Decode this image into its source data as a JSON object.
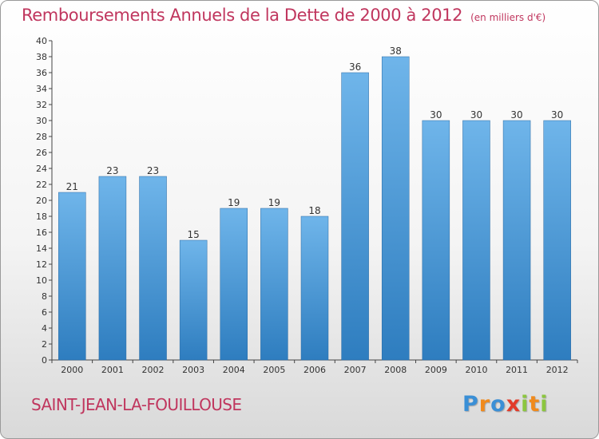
{
  "title": "Remboursements Annuels de la Dette de 2000 à 2012",
  "unit": "(en milliers d'€)",
  "commune": "SAINT-JEAN-LA-FOUILLOUSE",
  "logo": {
    "letters": [
      {
        "char": "P",
        "color": "#3a8fd6"
      },
      {
        "char": "r",
        "color": "#f08a1c"
      },
      {
        "char": "o",
        "color": "#3a8fd6"
      },
      {
        "char": "x",
        "color": "#e23b2a"
      },
      {
        "char": "i",
        "color": "#8cc63f"
      },
      {
        "char": "t",
        "color": "#f08a1c"
      },
      {
        "char": "i",
        "color": "#8cc63f"
      }
    ]
  },
  "colors": {
    "bar_top": "#6fb5ea",
    "bar_bottom": "#2e7dbf",
    "accent": "#c0365e"
  },
  "chart_data": {
    "type": "bar",
    "categories": [
      "2000",
      "2001",
      "2002",
      "2003",
      "2004",
      "2005",
      "2006",
      "2007",
      "2008",
      "2009",
      "2010",
      "2011",
      "2012"
    ],
    "values": [
      21,
      23,
      23,
      15,
      19,
      19,
      18,
      36,
      38,
      30,
      30,
      30,
      30
    ],
    "ylim": [
      0,
      40
    ],
    "ytick_step": 2,
    "grid": false,
    "data_labels": true
  }
}
